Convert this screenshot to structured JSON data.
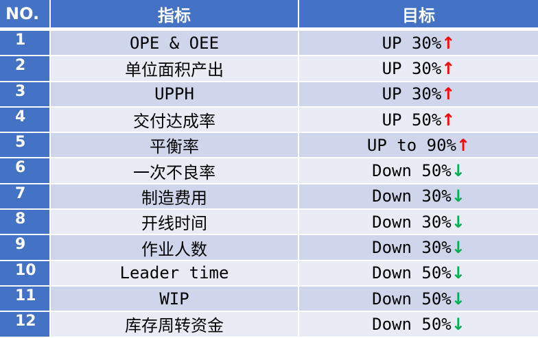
{
  "header": {
    "no": "NO.",
    "metric": "指标",
    "target": "目标"
  },
  "colors": {
    "header": "#4472C4",
    "row_dark": "#CFD5EA",
    "row_light": "#E9EBF5",
    "up": "#FF0000",
    "down": "#00B050"
  },
  "rows": [
    {
      "no": "1",
      "metric": "OPE & OEE",
      "target": "UP 30%",
      "dir": "up"
    },
    {
      "no": "2",
      "metric": "单位面积产出",
      "target": "UP 30%",
      "dir": "up"
    },
    {
      "no": "3",
      "metric": "UPPH",
      "target": "UP 30%",
      "dir": "up"
    },
    {
      "no": "4",
      "metric": "交付达成率",
      "target": "UP 50%",
      "dir": "up"
    },
    {
      "no": "5",
      "metric": "平衡率",
      "target": "UP to 90%",
      "dir": "up"
    },
    {
      "no": "6",
      "metric": "一次不良率",
      "target": "Down 50%",
      "dir": "down"
    },
    {
      "no": "7",
      "metric": "制造费用",
      "target": "Down 30%",
      "dir": "down"
    },
    {
      "no": "8",
      "metric": "开线时间",
      "target": "Down 30%",
      "dir": "down"
    },
    {
      "no": "9",
      "metric": "作业人数",
      "target": "Down 30%",
      "dir": "down"
    },
    {
      "no": "10",
      "metric": "Leader time",
      "target": "Down 50%",
      "dir": "down"
    },
    {
      "no": "11",
      "metric": "WIP",
      "target": "Down 50%",
      "dir": "down"
    },
    {
      "no": "12",
      "metric": "库存周转资金",
      "target": "Down 50%",
      "dir": "down"
    }
  ]
}
